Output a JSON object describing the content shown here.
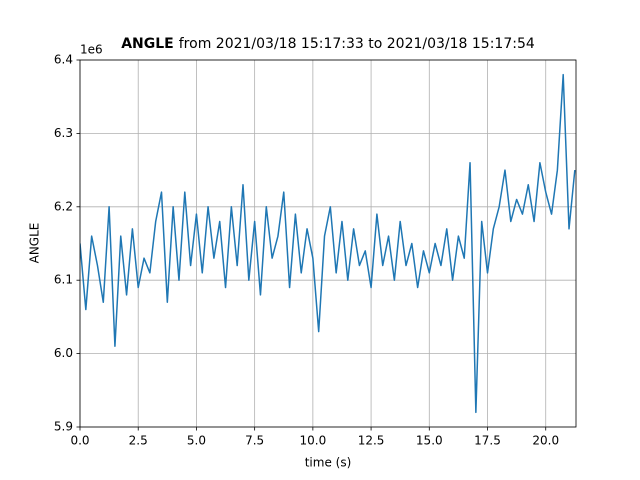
{
  "chart_data": {
    "type": "line",
    "title": {
      "name": "ANGLE",
      "range": "from 2021/03/18 15:17:33 to 2021/03/18 15:17:54"
    },
    "xlabel": "time (s)",
    "ylabel": "ANGLE",
    "offset_text": "1e6",
    "xlim": [
      0,
      21.3
    ],
    "ylim": [
      5.9,
      6.4
    ],
    "xticks": [
      {
        "value": 0,
        "label": "0.0"
      },
      2.5,
      {
        "value": 5,
        "label": "5.0"
      },
      7.5,
      {
        "value": 10,
        "label": "10.0"
      },
      12.5,
      {
        "value": 15,
        "label": "15.0"
      },
      17.5,
      {
        "value": 20,
        "label": "20.0"
      }
    ],
    "yticks": [
      5.9,
      {
        "value": 6,
        "label": "6.0"
      },
      6.1,
      6.2,
      6.3,
      6.4
    ],
    "grid": true,
    "x": [
      0,
      0.25,
      0.5,
      0.75,
      1,
      1.25,
      1.5,
      1.75,
      2,
      2.25,
      2.5,
      2.75,
      3,
      3.25,
      3.5,
      3.75,
      4,
      4.25,
      4.5,
      4.75,
      5,
      5.25,
      5.5,
      5.75,
      6,
      6.25,
      6.5,
      6.75,
      7,
      7.25,
      7.5,
      7.75,
      8,
      8.25,
      8.5,
      8.75,
      9,
      9.25,
      9.5,
      9.75,
      10,
      10.25,
      10.5,
      10.75,
      11,
      11.25,
      11.5,
      11.75,
      12,
      12.25,
      12.5,
      12.75,
      13,
      13.25,
      13.5,
      13.75,
      14,
      14.25,
      14.5,
      14.75,
      15,
      15.25,
      15.5,
      15.75,
      16,
      16.25,
      16.5,
      16.75,
      17,
      17.25,
      17.5,
      17.75,
      18,
      18.25,
      18.5,
      18.75,
      19,
      19.25,
      19.5,
      19.75,
      20,
      20.25,
      20.5,
      20.75,
      21,
      21.25
    ],
    "series": [
      {
        "name": "ANGLE",
        "color": "#1f77b4",
        "values": [
          6.15,
          6.06,
          6.16,
          6.12,
          6.07,
          6.2,
          6.01,
          6.16,
          6.08,
          6.17,
          6.09,
          6.13,
          6.11,
          6.18,
          6.22,
          6.07,
          6.2,
          6.1,
          6.22,
          6.12,
          6.19,
          6.11,
          6.2,
          6.13,
          6.18,
          6.09,
          6.2,
          6.12,
          6.23,
          6.1,
          6.18,
          6.08,
          6.2,
          6.13,
          6.16,
          6.22,
          6.09,
          6.19,
          6.11,
          6.17,
          6.13,
          6.03,
          6.16,
          6.2,
          6.11,
          6.18,
          6.1,
          6.17,
          6.12,
          6.14,
          6.09,
          6.19,
          6.12,
          6.16,
          6.1,
          6.18,
          6.12,
          6.15,
          6.09,
          6.14,
          6.11,
          6.15,
          6.12,
          6.17,
          6.1,
          6.16,
          6.13,
          6.26,
          5.92,
          6.18,
          6.11,
          6.17,
          6.2,
          6.25,
          6.18,
          6.21,
          6.19,
          6.23,
          6.18,
          6.26,
          6.22,
          6.19,
          6.25,
          6.38,
          6.17,
          6.25
        ]
      }
    ]
  }
}
